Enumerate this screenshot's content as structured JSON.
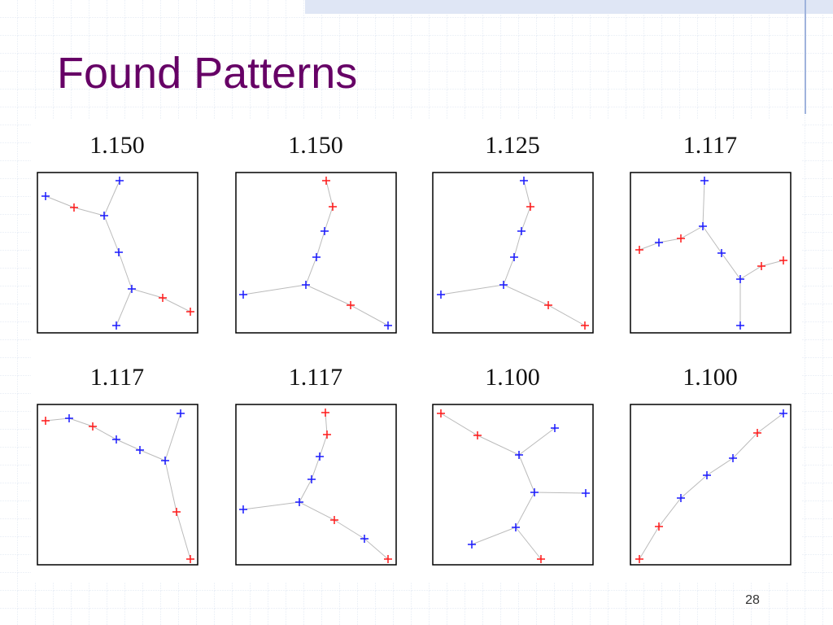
{
  "title": "Found Patterns",
  "patterns": [
    {
      "score": "1.150"
    },
    {
      "score": "1.150"
    },
    {
      "score": "1.125"
    },
    {
      "score": "1.117"
    },
    {
      "score": "1.117"
    },
    {
      "score": "1.117"
    },
    {
      "score": "1.100"
    },
    {
      "score": "1.100"
    }
  ],
  "page_number": "28"
}
